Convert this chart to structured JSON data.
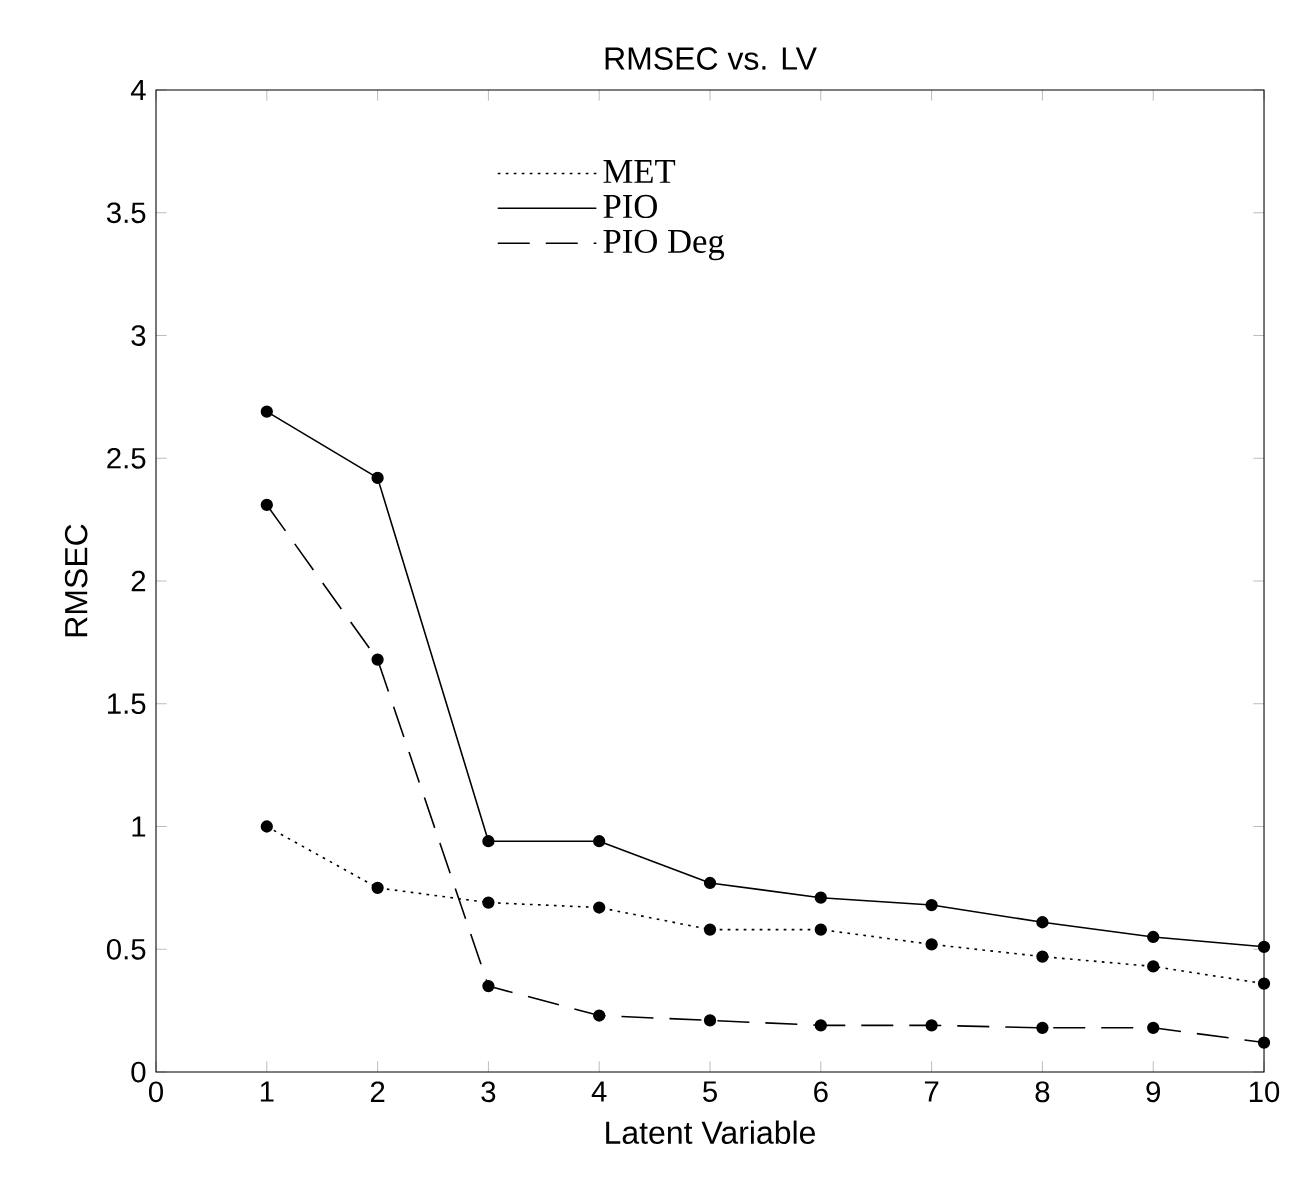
{
  "chart_data": {
    "type": "line",
    "title": "RMSEC vs. LV",
    "xlabel": "Latent Variable",
    "ylabel": "RMSEC",
    "x": [
      1,
      2,
      3,
      4,
      5,
      6,
      7,
      8,
      9,
      10
    ],
    "series": [
      {
        "name": "MET",
        "color": "#000000",
        "line_style": "dotted",
        "values": [
          1.0,
          0.75,
          0.69,
          0.67,
          0.58,
          0.58,
          0.52,
          0.47,
          0.43,
          0.36
        ]
      },
      {
        "name": "PIO",
        "color": "#000000",
        "line_style": "solid",
        "values": [
          2.69,
          2.42,
          0.94,
          0.94,
          0.77,
          0.71,
          0.68,
          0.61,
          0.55,
          0.51
        ]
      },
      {
        "name": "PIO Deg",
        "color": "#000000",
        "line_style": "dashed",
        "values": [
          2.31,
          1.68,
          0.35,
          0.23,
          0.21,
          0.19,
          0.19,
          0.18,
          0.18,
          0.12
        ]
      }
    ],
    "xlim": [
      0,
      10
    ],
    "xticks": [
      0,
      1,
      2,
      3,
      4,
      5,
      6,
      7,
      8,
      9,
      10
    ],
    "ylim": [
      0,
      4
    ],
    "yticks": [
      0,
      0.5,
      1,
      1.5,
      2,
      2.5,
      3,
      3.5,
      4
    ],
    "marker": "circle",
    "grid": false,
    "legend": "top left"
  }
}
